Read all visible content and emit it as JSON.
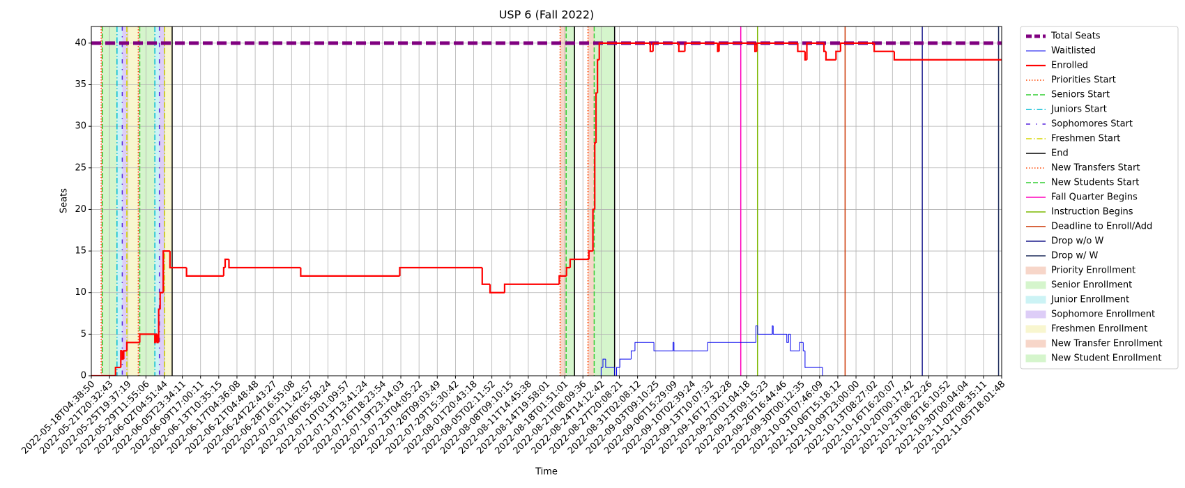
{
  "chart_data": {
    "type": "line",
    "title": "USP 6 (Fall 2022)",
    "xlabel": "Time",
    "ylabel": "Seats",
    "xlim": [
      0,
      50
    ],
    "ylim": [
      0,
      42
    ],
    "grid": true,
    "legend": "outside right",
    "step": true,
    "yticks": [
      0,
      5,
      10,
      15,
      20,
      25,
      30,
      35,
      40
    ],
    "xticks": [
      {
        "value": 0,
        "label": "2022-05-18T04:38:50"
      },
      {
        "value": 1,
        "label": "2022-05-21T20:32:43"
      },
      {
        "value": 2,
        "label": "2022-05-25T19:37:19"
      },
      {
        "value": 3,
        "label": "2022-05-29T11:55:06"
      },
      {
        "value": 4,
        "label": "2022-06-02T04:51:44"
      },
      {
        "value": 5,
        "label": "2022-06-05T23:34:11"
      },
      {
        "value": 6,
        "label": "2022-06-09T17:00:11"
      },
      {
        "value": 7,
        "label": "2022-06-13T10:35:15"
      },
      {
        "value": 8,
        "label": "2022-06-17T04:36:08"
      },
      {
        "value": 9,
        "label": "2022-06-21T04:48:48"
      },
      {
        "value": 10,
        "label": "2022-06-24T22:43:27"
      },
      {
        "value": 11,
        "label": "2022-06-28T16:55:08"
      },
      {
        "value": 12,
        "label": "2022-07-02T11:42:57"
      },
      {
        "value": 13,
        "label": "2022-07-06T05:58:24"
      },
      {
        "value": 14,
        "label": "2022-07-10T01:09:57"
      },
      {
        "value": 15,
        "label": "2022-07-13T13:41:24"
      },
      {
        "value": 16,
        "label": "2022-07-16T18:23:54"
      },
      {
        "value": 17,
        "label": "2022-07-19T23:14:03"
      },
      {
        "value": 18,
        "label": "2022-07-23T04:05:22"
      },
      {
        "value": 19,
        "label": "2022-07-26T09:03:49"
      },
      {
        "value": 20,
        "label": "2022-07-29T15:30:42"
      },
      {
        "value": 21,
        "label": "2022-08-01T20:43:18"
      },
      {
        "value": 22,
        "label": "2022-08-05T02:11:52"
      },
      {
        "value": 23,
        "label": "2022-08-08T09:10:15"
      },
      {
        "value": 24,
        "label": "2022-08-11T14:45:38"
      },
      {
        "value": 25,
        "label": "2022-08-14T19:58:01"
      },
      {
        "value": 26,
        "label": "2022-08-18T01:51:01"
      },
      {
        "value": 27,
        "label": "2022-08-21T08:09:36"
      },
      {
        "value": 28,
        "label": "2022-08-24T14:12:42"
      },
      {
        "value": 29,
        "label": "2022-08-27T20:08:21"
      },
      {
        "value": 30,
        "label": "2022-08-31T02:08:12"
      },
      {
        "value": 31,
        "label": "2022-09-03T09:10:25"
      },
      {
        "value": 32,
        "label": "2022-09-06T15:29:09"
      },
      {
        "value": 33,
        "label": "2022-09-10T02:39:24"
      },
      {
        "value": 34,
        "label": "2022-09-13T10:07:32"
      },
      {
        "value": 35,
        "label": "2022-09-16T17:32:28"
      },
      {
        "value": 36,
        "label": "2022-09-20T01:04:18"
      },
      {
        "value": 37,
        "label": "2022-09-23T09:15:23"
      },
      {
        "value": 38,
        "label": "2022-09-26T16:44:46"
      },
      {
        "value": 39,
        "label": "2022-09-30T00:12:35"
      },
      {
        "value": 40,
        "label": "2022-10-03T07:46:09"
      },
      {
        "value": 41,
        "label": "2022-10-06T15:18:12"
      },
      {
        "value": 42,
        "label": "2022-10-09T23:00:00"
      },
      {
        "value": 43,
        "label": "2022-10-13T08:27:02"
      },
      {
        "value": 44,
        "label": "2022-10-16T16:20:07"
      },
      {
        "value": 45,
        "label": "2022-10-20T00:17:42"
      },
      {
        "value": 46,
        "label": "2022-10-23T08:22:26"
      },
      {
        "value": 47,
        "label": "2022-10-26T16:10:52"
      },
      {
        "value": 48,
        "label": "2022-10-30T00:04:04"
      },
      {
        "value": 49,
        "label": "2022-11-02T08:35:11"
      },
      {
        "value": 50,
        "label": "2022-11-05T18:01:48"
      }
    ],
    "spans": [
      {
        "name": "Priority Enrollment",
        "color": "#f7d6c9",
        "ranges": [
          [
            0.54,
            0.62
          ],
          [
            2.58,
            2.66
          ]
        ]
      },
      {
        "name": "Senior Enrollment",
        "color": "#d5f5cc",
        "ranges": [
          [
            0.62,
            1.41
          ],
          [
            2.66,
            3.49
          ]
        ]
      },
      {
        "name": "Junior Enrollment",
        "color": "#ccf3f5",
        "ranges": [
          [
            1.41,
            1.7
          ],
          [
            3.49,
            3.74
          ]
        ]
      },
      {
        "name": "Sophomore Enrollment",
        "color": "#ddcdf7",
        "ranges": [
          [
            1.7,
            1.95
          ],
          [
            3.74,
            4.03
          ]
        ]
      },
      {
        "name": "Freshmen Enrollment",
        "color": "#f8f6cf",
        "ranges": [
          [
            1.95,
            2.58
          ],
          [
            4.03,
            4.44
          ]
        ]
      },
      {
        "name": "New Transfer Enrollment",
        "color": "#f7d6c9",
        "ranges": [
          [
            25.75,
            26.08
          ],
          [
            27.28,
            27.62
          ]
        ]
      },
      {
        "name": "New Student Enrollment",
        "color": "#d5f5cc",
        "ranges": [
          [
            26.08,
            26.54
          ],
          [
            27.62,
            28.74
          ]
        ]
      }
    ],
    "series": [
      {
        "name": "Total Seats",
        "color": "#800080",
        "width": 5,
        "dash": "dashed",
        "x": [
          0,
          50
        ],
        "values": [
          40,
          40
        ]
      },
      {
        "name": "Waitlisted",
        "color": "#0000ee",
        "width": 1,
        "dash": "solid",
        "x": [
          0,
          28.0,
          28.1,
          28.25,
          28.74,
          28.85,
          29.03,
          29.65,
          29.86,
          30.9,
          31.95,
          32.0,
          33.85,
          36.5,
          36.6,
          37.4,
          37.45,
          38.2,
          38.3,
          38.4,
          38.9,
          39.1,
          39.2,
          40.16,
          50
        ],
        "values": [
          0,
          1,
          2,
          1,
          0,
          1,
          2,
          3,
          4,
          3,
          4,
          3,
          4,
          6,
          5,
          6,
          5,
          4,
          5,
          3,
          4,
          3,
          1,
          0,
          0
        ]
      },
      {
        "name": "Enrolled",
        "color": "#ff0000",
        "width": 2.2,
        "dash": "solid",
        "x": [
          0,
          1.33,
          1.62,
          1.7,
          1.78,
          1.95,
          2.66,
          3.49,
          3.55,
          3.62,
          3.7,
          3.78,
          3.95,
          4.32,
          5.23,
          7.27,
          7.35,
          7.56,
          11.5,
          16.94,
          21.47,
          21.9,
          22.7,
          25.7,
          26.1,
          26.3,
          27.33,
          27.55,
          27.65,
          27.72,
          27.8,
          27.9,
          30.7,
          30.85,
          32.27,
          32.6,
          34.4,
          34.48,
          36.45,
          36.55,
          38.8,
          39.2,
          39.3,
          40.24,
          40.35,
          40.9,
          41.15,
          43.0,
          44.1,
          50
        ],
        "values": [
          0,
          1,
          3,
          2,
          3,
          4,
          5,
          4,
          5,
          4,
          8,
          10,
          15,
          13,
          12,
          13,
          14,
          13,
          12,
          13,
          11,
          10,
          11,
          12,
          13,
          14,
          15,
          20,
          28,
          34,
          38,
          40,
          39,
          40,
          39,
          40,
          39,
          40,
          39,
          40,
          39,
          38,
          40,
          39,
          38,
          39,
          40,
          39,
          38,
          38
        ]
      }
    ],
    "vlines": [
      {
        "name": "Priorities Start",
        "color": "#ff4500",
        "dash": "dotted",
        "x": [
          0.54,
          2.58,
          25.75,
          27.28
        ]
      },
      {
        "name": "Seniors Start",
        "color": "#32cd32",
        "dash": "dashed",
        "x": [
          0.62,
          2.66
        ]
      },
      {
        "name": "Juniors Start",
        "color": "#00bcd4",
        "dash": "dashdot",
        "x": [
          1.41,
          3.49
        ]
      },
      {
        "name": "Sophomores Start",
        "color": "#5522dd",
        "dash": "loosedashdot",
        "x": [
          1.7,
          3.74
        ]
      },
      {
        "name": "Freshmen Start",
        "color": "#d6d600",
        "dash": "dashdot",
        "x": [
          1.95,
          4.03
        ]
      },
      {
        "name": "End",
        "color": "#000000",
        "dash": "solid",
        "x": [
          4.44,
          26.54,
          28.74
        ]
      },
      {
        "name": "New Transfers Start",
        "color": "#ff4500",
        "dash": "dotted",
        "x": [
          25.75,
          27.28
        ]
      },
      {
        "name": "New Students Start",
        "color": "#32cd32",
        "dash": "dashed",
        "x": [
          26.08,
          27.62
        ]
      },
      {
        "name": "Fall Quarter Begins",
        "color": "#ff00bb",
        "dash": "solid",
        "x": [
          35.67
        ]
      },
      {
        "name": "Instruction Begins",
        "color": "#7cb800",
        "dash": "solid",
        "x": [
          36.59
        ]
      },
      {
        "name": "Deadline to Enroll/Add",
        "color": "#cc3300",
        "dash": "solid",
        "x": [
          41.4
        ]
      },
      {
        "name": "Drop w/o W",
        "color": "#1a1a8c",
        "dash": "solid",
        "x": [
          45.64
        ]
      },
      {
        "name": "Drop w/ W",
        "color": "#1f2d5c",
        "dash": "solid",
        "x": [
          49.83
        ]
      }
    ]
  }
}
